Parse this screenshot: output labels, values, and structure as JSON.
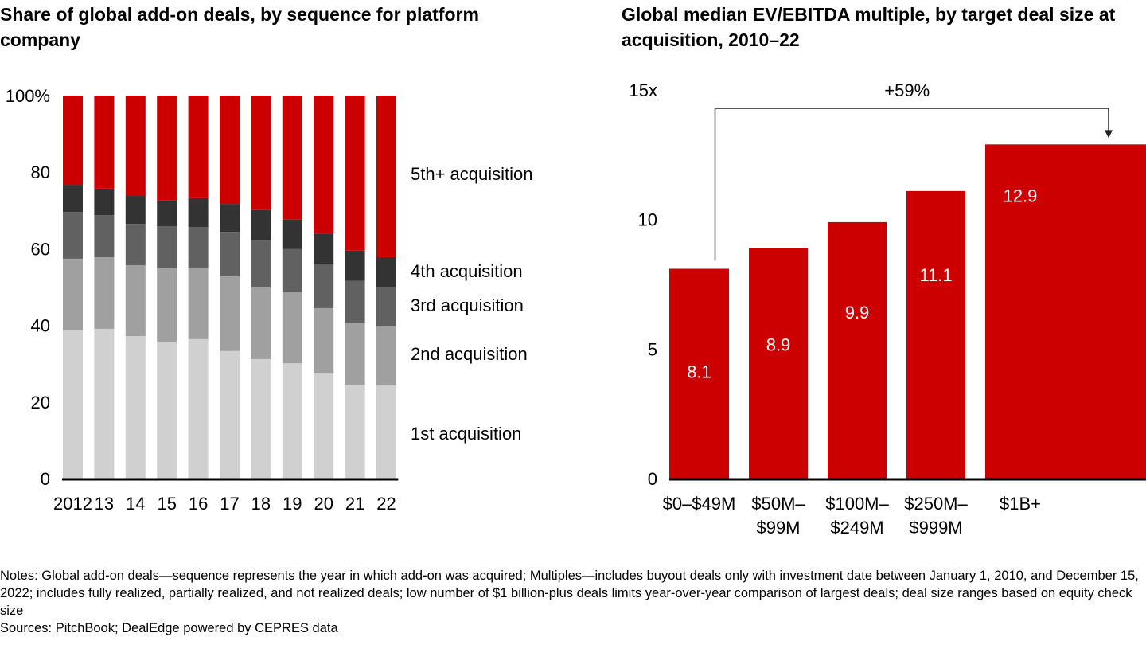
{
  "colors": {
    "fifth_plus": "#CC0000",
    "fourth": "#333333",
    "third": "#616161",
    "second": "#A0A0A0",
    "first": "#D0D0D0",
    "bar_red": "#CC0000",
    "bar_label": "#FFFFFF",
    "axis": "#000000"
  },
  "chart_data": [
    {
      "type": "bar",
      "stacked": true,
      "title": "Share of global add-on deals, by sequence for platform company",
      "xlabel": "",
      "ylabel": "",
      "ylim": [
        0,
        100
      ],
      "yticks": [
        "0",
        "20",
        "40",
        "60",
        "80",
        "100%"
      ],
      "ytick_values": [
        0,
        20,
        40,
        60,
        80,
        100
      ],
      "categories": [
        "2012",
        "13",
        "14",
        "15",
        "16",
        "17",
        "18",
        "19",
        "20",
        "21",
        "22"
      ],
      "legend_placement": "right",
      "series": [
        {
          "name": "1st acquisition",
          "key": "first",
          "values": [
            38.7,
            39.1,
            37.2,
            35.6,
            36.4,
            33.3,
            31.2,
            30.1,
            27.4,
            24.5,
            24.3
          ]
        },
        {
          "name": "2nd acquisition",
          "key": "second",
          "values": [
            18.7,
            18.7,
            18.5,
            19.3,
            18.7,
            19.5,
            18.7,
            18.5,
            17.1,
            16.2,
            15.4
          ]
        },
        {
          "name": "3rd acquisition",
          "key": "third",
          "values": [
            12.2,
            11.0,
            10.8,
            11.0,
            10.6,
            11.6,
            12.2,
            11.3,
            11.6,
            10.9,
            10.4
          ]
        },
        {
          "name": "4th acquisition",
          "key": "fourth",
          "values": [
            7.1,
            6.9,
            7.3,
            6.7,
            7.5,
            7.3,
            8.0,
            7.7,
            7.9,
            7.9,
            7.7
          ]
        },
        {
          "name": "5th+ acquisition",
          "key": "fifth_plus",
          "values": [
            23.3,
            24.3,
            26.2,
            27.4,
            26.8,
            28.3,
            29.9,
            32.4,
            36.0,
            40.5,
            42.2
          ]
        }
      ]
    },
    {
      "type": "bar",
      "title": "Global median EV/EBITDA multiple, by target deal size at acquisition, 2010–22",
      "xlabel": "",
      "ylabel": "",
      "ylim": [
        0,
        15
      ],
      "yticks": [
        "0",
        "5",
        "10",
        "15x"
      ],
      "ytick_values": [
        0,
        5,
        10,
        15
      ],
      "categories": [
        [
          "$0–$49M"
        ],
        [
          "$50M–",
          "$99M"
        ],
        [
          "$100M–",
          "$249M"
        ],
        [
          "$250M–",
          "$999M"
        ],
        [
          "$1B+"
        ]
      ],
      "values": [
        8.1,
        8.9,
        9.9,
        11.1,
        12.9
      ],
      "data_labels": [
        "8.1",
        "8.9",
        "9.9",
        "11.1",
        "12.9"
      ],
      "annotation": {
        "text": "+59%",
        "from_category": 0,
        "to_category": 4
      }
    }
  ],
  "notes": {
    "notes_text": "Notes: Global add-on deals—sequence represents the year in which add-on was acquired; Multiples—includes buyout deals only with investment date between January 1, 2010, and December 15, 2022; includes fully realized, partially realized, and not realized deals; low number of $1 billion-plus deals limits year-over-year comparison of largest deals; deal size ranges based on equity check size",
    "sources_text": "Sources: PitchBook; DealEdge powered by CEPRES data"
  }
}
